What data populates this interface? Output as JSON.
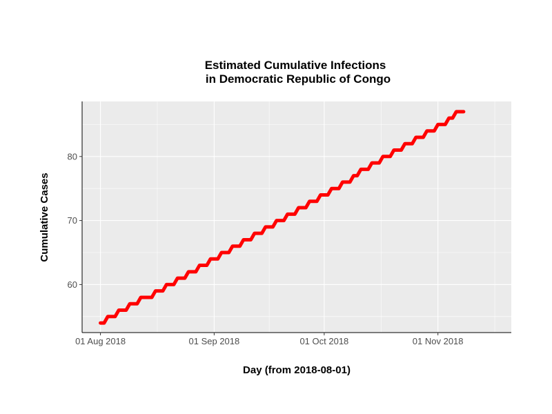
{
  "chart_data": {
    "type": "line",
    "title_line1": "Estimated Cumulative Infections",
    "title_line2": "in Democratic Republic of Congo",
    "xlabel": "Day (from 2018-08-01)",
    "ylabel": "Cumulative Cases",
    "x_ticks": [
      {
        "date": "2018-08-01",
        "label": "01 Aug 2018"
      },
      {
        "date": "2018-09-01",
        "label": "01 Sep 2018"
      },
      {
        "date": "2018-10-01",
        "label": "01 Oct 2018"
      },
      {
        "date": "2018-11-01",
        "label": "01 Nov 2018"
      }
    ],
    "y_ticks": [
      60,
      70,
      80
    ],
    "xlim": [
      "2018-07-27",
      "2018-11-21"
    ],
    "ylim": [
      52.5,
      88.6
    ],
    "grid": true,
    "legend": "none",
    "background_color": "#ebebeb",
    "series": [
      {
        "color": "#ff0000",
        "points": [
          {
            "x": "2018-08-01",
            "y": 54
          },
          {
            "x": "2018-08-02",
            "y": 54
          },
          {
            "x": "2018-08-03",
            "y": 55
          },
          {
            "x": "2018-08-04",
            "y": 55
          },
          {
            "x": "2018-08-05",
            "y": 55
          },
          {
            "x": "2018-08-06",
            "y": 56
          },
          {
            "x": "2018-08-07",
            "y": 56
          },
          {
            "x": "2018-08-08",
            "y": 56
          },
          {
            "x": "2018-08-09",
            "y": 57
          },
          {
            "x": "2018-08-10",
            "y": 57
          },
          {
            "x": "2018-08-11",
            "y": 57
          },
          {
            "x": "2018-08-12",
            "y": 58
          },
          {
            "x": "2018-08-13",
            "y": 58
          },
          {
            "x": "2018-08-14",
            "y": 58
          },
          {
            "x": "2018-08-15",
            "y": 58
          },
          {
            "x": "2018-08-16",
            "y": 59
          },
          {
            "x": "2018-08-17",
            "y": 59
          },
          {
            "x": "2018-08-18",
            "y": 59
          },
          {
            "x": "2018-08-19",
            "y": 60
          },
          {
            "x": "2018-08-20",
            "y": 60
          },
          {
            "x": "2018-08-21",
            "y": 60
          },
          {
            "x": "2018-08-22",
            "y": 61
          },
          {
            "x": "2018-08-23",
            "y": 61
          },
          {
            "x": "2018-08-24",
            "y": 61
          },
          {
            "x": "2018-08-25",
            "y": 62
          },
          {
            "x": "2018-08-26",
            "y": 62
          },
          {
            "x": "2018-08-27",
            "y": 62
          },
          {
            "x": "2018-08-28",
            "y": 63
          },
          {
            "x": "2018-08-29",
            "y": 63
          },
          {
            "x": "2018-08-30",
            "y": 63
          },
          {
            "x": "2018-08-31",
            "y": 64
          },
          {
            "x": "2018-09-01",
            "y": 64
          },
          {
            "x": "2018-09-02",
            "y": 64
          },
          {
            "x": "2018-09-03",
            "y": 65
          },
          {
            "x": "2018-09-04",
            "y": 65
          },
          {
            "x": "2018-09-05",
            "y": 65
          },
          {
            "x": "2018-09-06",
            "y": 66
          },
          {
            "x": "2018-09-07",
            "y": 66
          },
          {
            "x": "2018-09-08",
            "y": 66
          },
          {
            "x": "2018-09-09",
            "y": 67
          },
          {
            "x": "2018-09-10",
            "y": 67
          },
          {
            "x": "2018-09-11",
            "y": 67
          },
          {
            "x": "2018-09-12",
            "y": 68
          },
          {
            "x": "2018-09-13",
            "y": 68
          },
          {
            "x": "2018-09-14",
            "y": 68
          },
          {
            "x": "2018-09-15",
            "y": 69
          },
          {
            "x": "2018-09-16",
            "y": 69
          },
          {
            "x": "2018-09-17",
            "y": 69
          },
          {
            "x": "2018-09-18",
            "y": 70
          },
          {
            "x": "2018-09-19",
            "y": 70
          },
          {
            "x": "2018-09-20",
            "y": 70
          },
          {
            "x": "2018-09-21",
            "y": 71
          },
          {
            "x": "2018-09-22",
            "y": 71
          },
          {
            "x": "2018-09-23",
            "y": 71
          },
          {
            "x": "2018-09-24",
            "y": 72
          },
          {
            "x": "2018-09-25",
            "y": 72
          },
          {
            "x": "2018-09-26",
            "y": 72
          },
          {
            "x": "2018-09-27",
            "y": 73
          },
          {
            "x": "2018-09-28",
            "y": 73
          },
          {
            "x": "2018-09-29",
            "y": 73
          },
          {
            "x": "2018-09-30",
            "y": 74
          },
          {
            "x": "2018-10-01",
            "y": 74
          },
          {
            "x": "2018-10-02",
            "y": 74
          },
          {
            "x": "2018-10-03",
            "y": 75
          },
          {
            "x": "2018-10-04",
            "y": 75
          },
          {
            "x": "2018-10-05",
            "y": 75
          },
          {
            "x": "2018-10-06",
            "y": 76
          },
          {
            "x": "2018-10-07",
            "y": 76
          },
          {
            "x": "2018-10-08",
            "y": 76
          },
          {
            "x": "2018-10-09",
            "y": 77
          },
          {
            "x": "2018-10-10",
            "y": 77
          },
          {
            "x": "2018-10-11",
            "y": 78
          },
          {
            "x": "2018-10-12",
            "y": 78
          },
          {
            "x": "2018-10-13",
            "y": 78
          },
          {
            "x": "2018-10-14",
            "y": 79
          },
          {
            "x": "2018-10-15",
            "y": 79
          },
          {
            "x": "2018-10-16",
            "y": 79
          },
          {
            "x": "2018-10-17",
            "y": 80
          },
          {
            "x": "2018-10-18",
            "y": 80
          },
          {
            "x": "2018-10-19",
            "y": 80
          },
          {
            "x": "2018-10-20",
            "y": 81
          },
          {
            "x": "2018-10-21",
            "y": 81
          },
          {
            "x": "2018-10-22",
            "y": 81
          },
          {
            "x": "2018-10-23",
            "y": 82
          },
          {
            "x": "2018-10-24",
            "y": 82
          },
          {
            "x": "2018-10-25",
            "y": 82
          },
          {
            "x": "2018-10-26",
            "y": 83
          },
          {
            "x": "2018-10-27",
            "y": 83
          },
          {
            "x": "2018-10-28",
            "y": 83
          },
          {
            "x": "2018-10-29",
            "y": 84
          },
          {
            "x": "2018-10-30",
            "y": 84
          },
          {
            "x": "2018-10-31",
            "y": 84
          },
          {
            "x": "2018-11-01",
            "y": 85
          },
          {
            "x": "2018-11-02",
            "y": 85
          },
          {
            "x": "2018-11-03",
            "y": 85
          },
          {
            "x": "2018-11-04",
            "y": 86
          },
          {
            "x": "2018-11-05",
            "y": 86
          },
          {
            "x": "2018-11-06",
            "y": 87
          },
          {
            "x": "2018-11-07",
            "y": 87
          },
          {
            "x": "2018-11-08",
            "y": 87
          }
        ]
      }
    ]
  }
}
